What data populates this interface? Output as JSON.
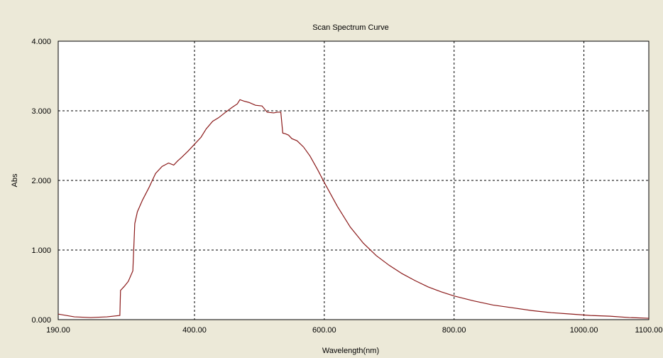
{
  "chart_data": {
    "type": "line",
    "title": "Scan Spectrum Curve",
    "xlabel": "Wavelength(nm)",
    "ylabel": "Abs",
    "xlim": [
      190,
      1100
    ],
    "ylim": [
      0,
      4
    ],
    "x_ticks": [
      190,
      400,
      600,
      800,
      1000,
      1100
    ],
    "x_tick_labels": [
      "190.00",
      "400.00",
      "600.00",
      "800.00",
      "1000.00",
      "1100.00"
    ],
    "y_ticks": [
      0,
      1,
      2,
      3,
      4
    ],
    "y_tick_labels": [
      "0.000",
      "1.000",
      "2.000",
      "3.000",
      "4.000"
    ],
    "grid": true,
    "line_color": "#8b1a1a",
    "series": [
      {
        "x": [
          190,
          215,
          240,
          265,
          285,
          286,
          292,
          298,
          305,
          308,
          312,
          320,
          330,
          340,
          350,
          360,
          368,
          374,
          380,
          390,
          400,
          410,
          418,
          428,
          437,
          448,
          458,
          466,
          470,
          476,
          484,
          494,
          504,
          512,
          522,
          528,
          533,
          536,
          540,
          545,
          550,
          558,
          568,
          578,
          590,
          600,
          620,
          640,
          660,
          680,
          700,
          720,
          740,
          760,
          780,
          800,
          830,
          860,
          890,
          920,
          950,
          980,
          1010,
          1040,
          1070,
          1100
        ],
        "y": [
          0.08,
          0.04,
          0.03,
          0.04,
          0.06,
          0.42,
          0.48,
          0.55,
          0.7,
          1.38,
          1.55,
          1.72,
          1.9,
          2.1,
          2.2,
          2.25,
          2.22,
          2.28,
          2.33,
          2.42,
          2.52,
          2.62,
          2.74,
          2.85,
          2.9,
          2.98,
          3.05,
          3.1,
          3.16,
          3.14,
          3.12,
          3.08,
          3.07,
          2.98,
          2.97,
          2.98,
          2.98,
          2.68,
          2.67,
          2.65,
          2.6,
          2.57,
          2.48,
          2.35,
          2.15,
          1.97,
          1.63,
          1.33,
          1.1,
          0.92,
          0.78,
          0.66,
          0.56,
          0.47,
          0.4,
          0.34,
          0.27,
          0.21,
          0.17,
          0.13,
          0.1,
          0.08,
          0.06,
          0.05,
          0.03,
          0.02
        ]
      }
    ]
  }
}
